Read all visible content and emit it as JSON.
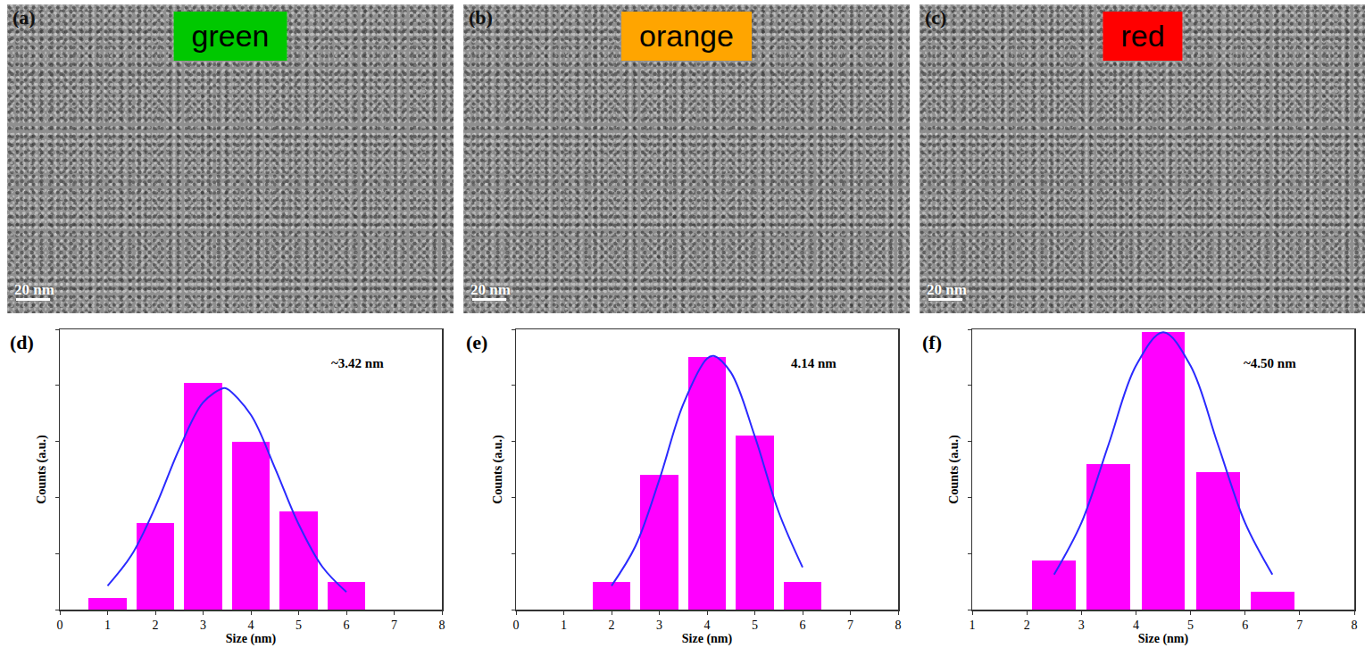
{
  "image_panels": [
    {
      "label": "(a)",
      "badge": "green",
      "badge_color": "#00c800",
      "scale_bar": "20 nm"
    },
    {
      "label": "(b)",
      "badge": "orange",
      "badge_color": "#ffa500",
      "scale_bar": "20 nm"
    },
    {
      "label": "(c)",
      "badge": "red",
      "badge_color": "#ff0000",
      "scale_bar": "20 nm"
    }
  ],
  "chart_data": [
    {
      "type": "bar",
      "panel_label": "(d)",
      "x_label": "Size (nm)",
      "y_label": "Counts (a.u.)",
      "annotations": [
        {
          "text": "~3.42 nm"
        }
      ],
      "xlim": [
        0,
        8
      ],
      "xticks": [
        0,
        1,
        2,
        3,
        4,
        5,
        6,
        7,
        8
      ],
      "ylim": [
        0,
        100
      ],
      "yticks": [
        0,
        20,
        40,
        60,
        80,
        100
      ],
      "tick_labels": "x",
      "grid": false,
      "series": [
        {
          "type": "bar",
          "color": "#ff00ff",
          "x": [
            1,
            2,
            3,
            4,
            5,
            6
          ],
          "values": [
            4,
            31,
            81,
            60,
            35,
            10
          ]
        },
        {
          "type": "line",
          "color": "#2a2aff",
          "line_style": "solid",
          "x": [
            1,
            1.5,
            2,
            2.5,
            3,
            3.42,
            3.5,
            4,
            4.5,
            5,
            5.5,
            6
          ],
          "values": [
            8.5,
            19.4,
            36.6,
            57.3,
            73.9,
            79,
            78.8,
            69.5,
            50.7,
            30.5,
            15.2,
            6.3
          ]
        }
      ]
    },
    {
      "type": "bar",
      "panel_label": "(e)",
      "x_label": "Size (nm)",
      "y_label": "Counts (a.u.)",
      "annotations": [
        {
          "text": "4.14 nm"
        }
      ],
      "xlim": [
        0,
        8
      ],
      "xticks": [
        0,
        1,
        2,
        3,
        4,
        5,
        6,
        7,
        8
      ],
      "ylim": [
        0,
        100
      ],
      "yticks": [
        0,
        20,
        40,
        60,
        80,
        100
      ],
      "tick_labels": "x",
      "grid": false,
      "series": [
        {
          "type": "bar",
          "color": "#ff00ff",
          "x": [
            2,
            3,
            4,
            5,
            6
          ],
          "values": [
            10,
            48,
            90,
            62,
            10
          ]
        },
        {
          "type": "line",
          "color": "#2a2aff",
          "line_style": "solid",
          "x": [
            2,
            2.5,
            3,
            3.5,
            4,
            4.14,
            4.5,
            5,
            5.5,
            6
          ],
          "values": [
            8.5,
            22.6,
            46.3,
            73.2,
            89.6,
            90.5,
            84.6,
            61.8,
            34.8,
            15.1
          ]
        }
      ]
    },
    {
      "type": "bar",
      "panel_label": "(f)",
      "x_label": "Size (nm)",
      "y_label": "Counts (a.u.)",
      "annotations": [
        {
          "text": "~4.50 nm"
        }
      ],
      "xlim": [
        1,
        8
      ],
      "xticks": [
        1,
        2,
        3,
        4,
        5,
        6,
        7,
        8
      ],
      "ylim": [
        0,
        100
      ],
      "yticks": [
        0,
        20,
        40,
        60,
        80,
        100
      ],
      "tick_labels": "x",
      "grid": false,
      "series": [
        {
          "type": "bar",
          "color": "#ff00ff",
          "x": [
            2.5,
            3.5,
            4.5,
            5.5,
            6.5
          ],
          "values": [
            17.6,
            52,
            99,
            49,
            6.4
          ]
        },
        {
          "type": "line",
          "color": "#2a2aff",
          "line_style": "solid",
          "x": [
            2.5,
            3,
            3.5,
            4,
            4.5,
            5,
            5.5,
            6,
            6.5
          ],
          "values": [
            12.5,
            30.9,
            59,
            87,
            99,
            87,
            59,
            30.9,
            12.5
          ]
        }
      ]
    }
  ]
}
